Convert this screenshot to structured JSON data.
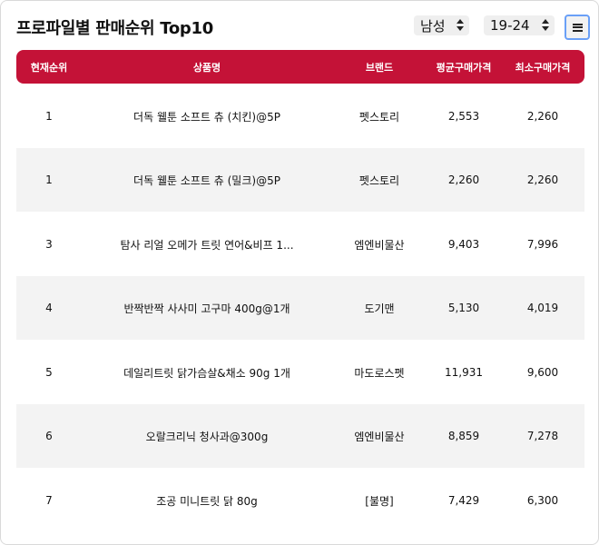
{
  "header": {
    "title": "프로파일별 판매순위 Top10"
  },
  "filters": {
    "gender": "남성",
    "age": "19-24"
  },
  "table": {
    "columns": [
      "현재순위",
      "상품명",
      "브랜드",
      "평균구매가격",
      "최소구매가격"
    ],
    "rows": [
      {
        "rank": "1",
        "product": "더독 웰툰 소프트 츄 (치킨)@5P",
        "brand": "펫스토리",
        "avg_price": "2,553",
        "min_price": "2,260"
      },
      {
        "rank": "1",
        "product": "더독 웰툰 소프트 츄 (밀크)@5P",
        "brand": "펫스토리",
        "avg_price": "2,260",
        "min_price": "2,260"
      },
      {
        "rank": "3",
        "product": "탐사 리얼 오메가 트릿 연어&비프 1...",
        "brand": "엠엔비물산",
        "avg_price": "9,403",
        "min_price": "7,996"
      },
      {
        "rank": "4",
        "product": "반짝반짝 사사미 고구마 400g@1개",
        "brand": "도기맨",
        "avg_price": "5,130",
        "min_price": "4,019"
      },
      {
        "rank": "5",
        "product": "데일리트릿 닭가슴살&채소 90g 1개",
        "brand": "마도로스펫",
        "avg_price": "11,931",
        "min_price": "9,600"
      },
      {
        "rank": "6",
        "product": "오랄크리닉 청사과@300g",
        "brand": "엠엔비물산",
        "avg_price": "8,859",
        "min_price": "7,278"
      },
      {
        "rank": "7",
        "product": "조공 미니트릿 닭 80g",
        "brand": "[불명]",
        "avg_price": "7,429",
        "min_price": "6,300"
      }
    ]
  },
  "colors": {
    "header_bg": "#c41237",
    "alt_row_bg": "#f3f3f3",
    "focus_ring": "#6aa0f7"
  },
  "icons": {
    "menu": "hamburger-menu-icon"
  }
}
